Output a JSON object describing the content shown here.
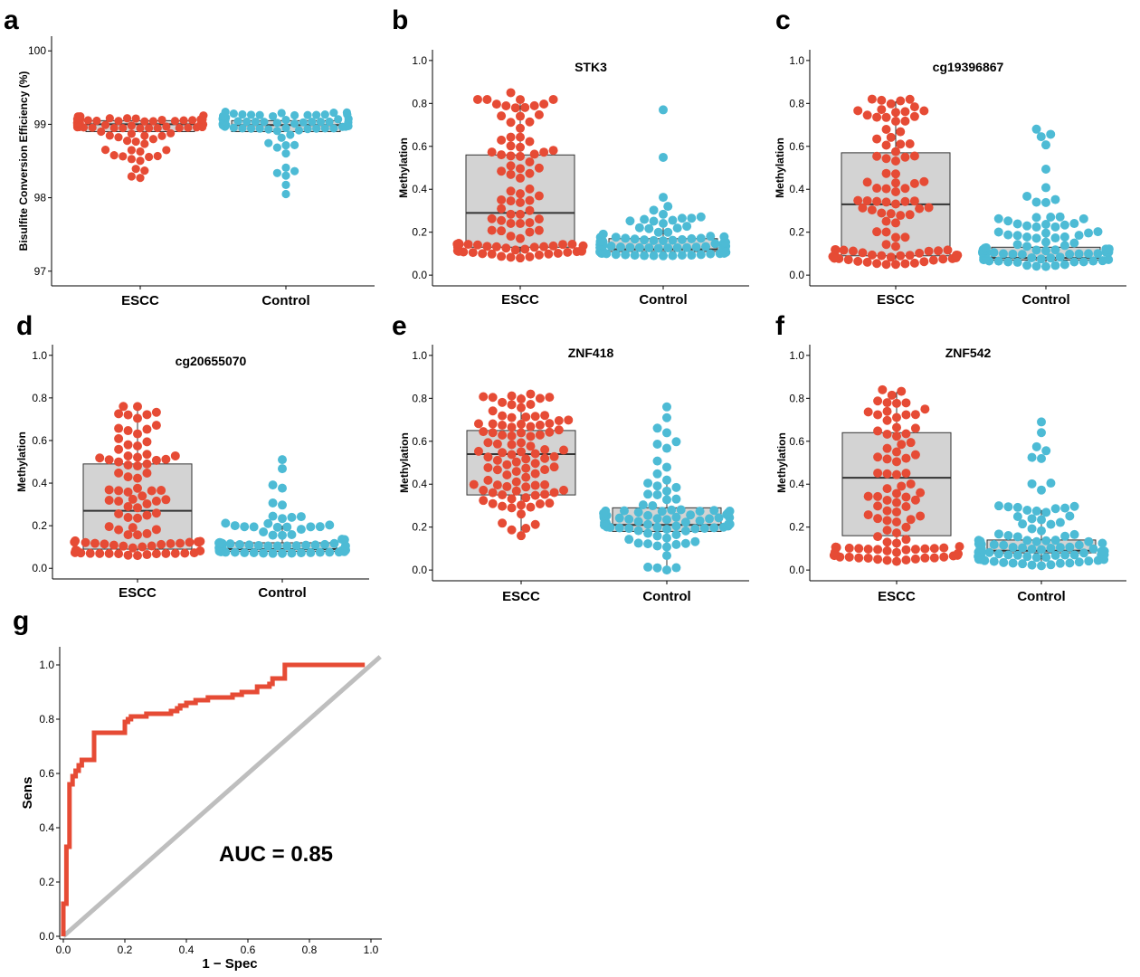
{
  "panel_labels": [
    "a",
    "b",
    "c",
    "d",
    "e",
    "f",
    "g"
  ],
  "colors": {
    "escc": "#E64B35",
    "control": "#4DBBD5",
    "box_fill": "#D3D3D3",
    "roc_line": "#E64B35",
    "diagonal": "#BEBEBE"
  },
  "chart_data": [
    {
      "type": "box-swarm",
      "panel": "a",
      "title": "",
      "ylabel": "Bisulfite Conversion Efficiency (%)",
      "ylim": [
        96.8,
        100.2
      ],
      "yticks": [
        97,
        98,
        99,
        100
      ],
      "ytick_labels": [
        "97",
        "98",
        "99",
        "100"
      ],
      "categories": [
        "ESCC",
        "Control"
      ],
      "grid": false,
      "series": [
        {
          "name": "ESCC",
          "box": {
            "q1": 98.9,
            "median": 99.0,
            "q3": 99.05
          },
          "whisker": [
            98.9,
            99.05
          ],
          "min": 98.27,
          "max": 99.12,
          "n": 90,
          "shape": "ends"
        },
        {
          "name": "Control",
          "box": {
            "q1": 98.9,
            "median": 98.99,
            "q3": 99.05
          },
          "whisker": [
            98.9,
            99.05
          ],
          "min": 98.05,
          "max": 99.17,
          "n": 90,
          "shape": "ends"
        }
      ]
    },
    {
      "type": "box-swarm",
      "panel": "b",
      "title": "STK3",
      "ylabel": "Methylation",
      "ylim": [
        -0.05,
        1.05
      ],
      "yticks": [
        0,
        0.2,
        0.4,
        0.6,
        0.8,
        1.0
      ],
      "ytick_labels": [
        "0.0",
        "0.2",
        "0.4",
        "0.6",
        "0.8",
        "1.0"
      ],
      "categories": [
        "ESCC",
        "Control"
      ],
      "grid": false,
      "series": [
        {
          "name": "ESCC",
          "box": {
            "q1": 0.13,
            "median": 0.29,
            "q3": 0.56
          },
          "whisker": [
            0.08,
            0.83
          ],
          "min": 0.08,
          "max": 0.85,
          "n": 95,
          "shape": "wide"
        },
        {
          "name": "Control",
          "box": {
            "q1": 0.11,
            "median": 0.12,
            "q3": 0.17
          },
          "whisker": [
            0.09,
            0.25
          ],
          "min": 0.09,
          "max": 0.77,
          "n": 100,
          "shape": "low"
        }
      ]
    },
    {
      "type": "box-swarm",
      "panel": "c",
      "title": "cg19396867",
      "ylabel": "Methylation",
      "ylim": [
        -0.05,
        1.05
      ],
      "yticks": [
        0,
        0.2,
        0.4,
        0.6,
        0.8,
        1.0
      ],
      "ytick_labels": [
        "0.0",
        "0.2",
        "0.4",
        "0.6",
        "0.8",
        "1.0"
      ],
      "categories": [
        "ESCC",
        "Control"
      ],
      "grid": false,
      "series": [
        {
          "name": "ESCC",
          "box": {
            "q1": 0.09,
            "median": 0.33,
            "q3": 0.57
          },
          "whisker": [
            0.05,
            0.81
          ],
          "min": 0.05,
          "max": 0.82,
          "n": 95,
          "shape": "wide"
        },
        {
          "name": "Control",
          "box": {
            "q1": 0.07,
            "median": 0.08,
            "q3": 0.13
          },
          "whisker": [
            0.04,
            0.24
          ],
          "min": 0.04,
          "max": 0.68,
          "n": 100,
          "shape": "low"
        }
      ]
    },
    {
      "type": "box-swarm",
      "panel": "d",
      "title": "cg20655070",
      "ylabel": "Methylation",
      "ylim": [
        -0.05,
        1.05
      ],
      "yticks": [
        0,
        0.2,
        0.4,
        0.6,
        0.8,
        1.0
      ],
      "ytick_labels": [
        "0.0",
        "0.2",
        "0.4",
        "0.6",
        "0.8",
        "1.0"
      ],
      "categories": [
        "ESCC",
        "Control"
      ],
      "grid": false,
      "series": [
        {
          "name": "ESCC",
          "box": {
            "q1": 0.09,
            "median": 0.27,
            "q3": 0.49
          },
          "whisker": [
            0.06,
            0.75
          ],
          "min": 0.06,
          "max": 0.76,
          "n": 95,
          "shape": "wide"
        },
        {
          "name": "Control",
          "box": {
            "q1": 0.08,
            "median": 0.09,
            "q3": 0.12
          },
          "whisker": [
            0.07,
            0.2
          ],
          "min": 0.07,
          "max": 0.51,
          "n": 100,
          "shape": "low"
        }
      ]
    },
    {
      "type": "box-swarm",
      "panel": "e",
      "title": "ZNF418",
      "ylabel": "Methylation",
      "ylim": [
        -0.05,
        1.05
      ],
      "yticks": [
        0,
        0.2,
        0.4,
        0.6,
        0.8,
        1.0
      ],
      "ytick_labels": [
        "0.0",
        "0.2",
        "0.4",
        "0.6",
        "0.8",
        "1.0"
      ],
      "categories": [
        "ESCC",
        "Control"
      ],
      "grid": false,
      "series": [
        {
          "name": "ESCC",
          "box": {
            "q1": 0.35,
            "median": 0.54,
            "q3": 0.65
          },
          "whisker": [
            0.16,
            0.82
          ],
          "min": 0.16,
          "max": 0.82,
          "n": 95,
          "shape": "upper"
        },
        {
          "name": "Control",
          "box": {
            "q1": 0.18,
            "median": 0.21,
            "q3": 0.29
          },
          "whisker": [
            0.0,
            0.4
          ],
          "min": 0.0,
          "max": 0.76,
          "n": 100,
          "shape": "mid"
        }
      ]
    },
    {
      "type": "box-swarm",
      "panel": "f",
      "title": "ZNF542",
      "ylabel": "Methylation",
      "ylim": [
        -0.05,
        1.05
      ],
      "yticks": [
        0,
        0.2,
        0.4,
        0.6,
        0.8,
        1.0
      ],
      "ytick_labels": [
        "0.0",
        "0.2",
        "0.4",
        "0.6",
        "0.8",
        "1.0"
      ],
      "categories": [
        "ESCC",
        "Control"
      ],
      "grid": false,
      "series": [
        {
          "name": "ESCC",
          "box": {
            "q1": 0.16,
            "median": 0.43,
            "q3": 0.64
          },
          "whisker": [
            0.04,
            0.83
          ],
          "min": 0.04,
          "max": 0.84,
          "n": 95,
          "shape": "wide"
        },
        {
          "name": "Control",
          "box": {
            "q1": 0.08,
            "median": 0.09,
            "q3": 0.14
          },
          "whisker": [
            0.02,
            0.28
          ],
          "min": 0.02,
          "max": 0.69,
          "n": 100,
          "shape": "low"
        }
      ]
    },
    {
      "type": "line",
      "panel": "g",
      "title": "",
      "xlabel": "1 − Spec",
      "ylabel": "Sens",
      "xlim": [
        0,
        1
      ],
      "ylim": [
        0,
        1
      ],
      "xticks": [
        0,
        0.2,
        0.4,
        0.6,
        0.8,
        1.0
      ],
      "xtick_labels": [
        "0.0",
        "0.2",
        "0.4",
        "0.6",
        "0.8",
        "1.0"
      ],
      "yticks": [
        0,
        0.2,
        0.4,
        0.6,
        0.8,
        1.0
      ],
      "ytick_labels": [
        "0.0",
        "0.2",
        "0.4",
        "0.6",
        "0.8",
        "1.0"
      ],
      "annotation": "AUC = 0.85",
      "auc": 0.85,
      "grid": false,
      "series": [
        {
          "kind": "roc",
          "x": [
            0,
            0,
            0.01,
            0.01,
            0.02,
            0.02,
            0.03,
            0.03,
            0.04,
            0.05,
            0.06,
            0.07,
            0.08,
            0.1,
            0.1,
            0.2,
            0.21,
            0.22,
            0.24,
            0.27,
            0.35,
            0.37,
            0.38,
            0.4,
            0.43,
            0.47,
            0.55,
            0.58,
            0.63,
            0.67,
            0.68,
            0.72,
            0.72,
            0.98
          ],
          "y": [
            0,
            0.12,
            0.12,
            0.33,
            0.35,
            0.56,
            0.57,
            0.59,
            0.61,
            0.63,
            0.65,
            0.65,
            0.65,
            0.74,
            0.75,
            0.79,
            0.8,
            0.81,
            0.81,
            0.82,
            0.83,
            0.84,
            0.85,
            0.86,
            0.87,
            0.88,
            0.89,
            0.9,
            0.92,
            0.93,
            0.95,
            0.95,
            1.0,
            1.0
          ]
        },
        {
          "kind": "diagonal",
          "x": [
            0,
            1.03
          ],
          "y": [
            0,
            1.03
          ]
        }
      ]
    }
  ]
}
